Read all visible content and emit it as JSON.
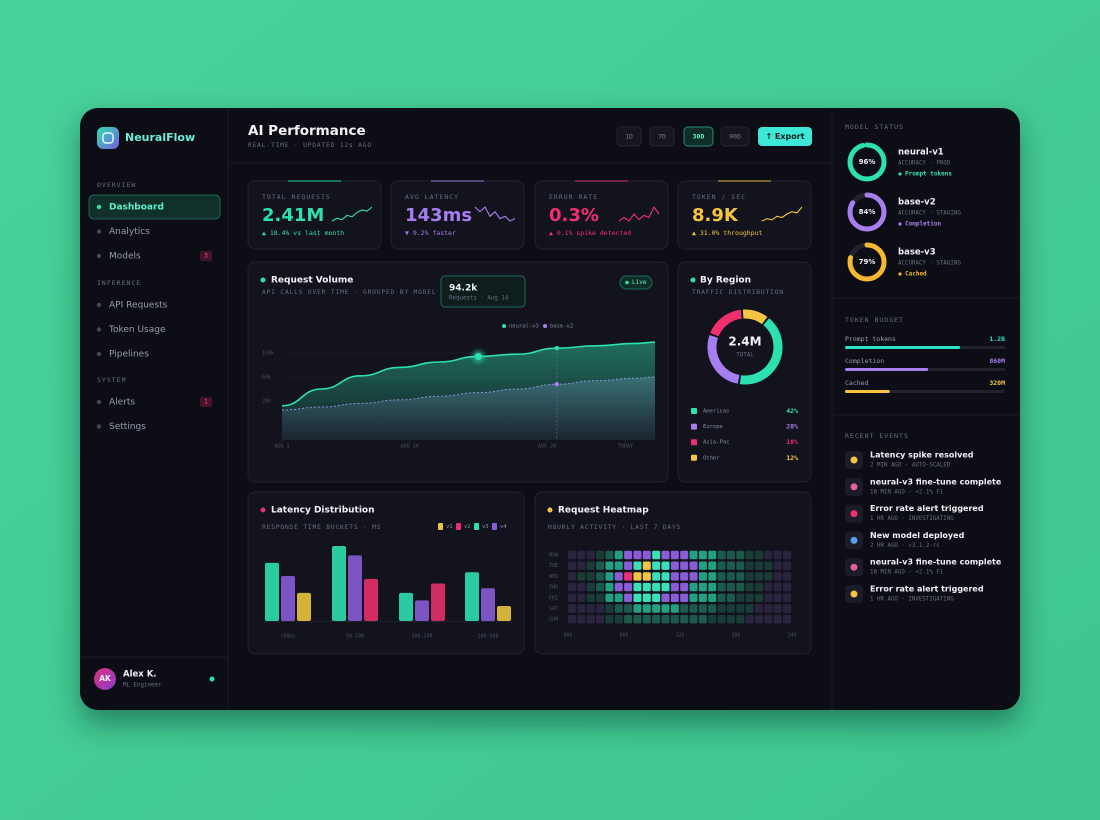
{
  "sidebar": {
    "brand": "NeuralFlow",
    "sections": [
      {
        "title": "OVERVIEW",
        "items": [
          {
            "label": "Dashboard",
            "active": true
          },
          {
            "label": "Analytics"
          },
          {
            "label": "Models",
            "badge": "3"
          }
        ]
      },
      {
        "title": "INFERENCE",
        "items": [
          {
            "label": "API Requests"
          },
          {
            "label": "Token Usage"
          },
          {
            "label": "Pipelines"
          }
        ]
      },
      {
        "title": "SYSTEM",
        "items": [
          {
            "label": "Alerts",
            "badge": "1"
          },
          {
            "label": "Settings"
          }
        ]
      }
    ],
    "user": {
      "initials": "AK",
      "name": "Alex K.",
      "role": "ML Engineer"
    }
  },
  "header": {
    "title": "AI Performance",
    "subtitle": "REAL-TIME · UPDATED 12s AGO",
    "ranges": [
      {
        "label": "1D"
      },
      {
        "label": "7D"
      },
      {
        "label": "30D",
        "active": true
      },
      {
        "label": "90D"
      }
    ],
    "export": "↑ Export"
  },
  "kpis": [
    {
      "label": "TOTAL REQUESTS",
      "value": "2.41M",
      "delta": "▲ 18.4% vs last month",
      "color": "#2de0b0",
      "spark": [
        3,
        4,
        3.5,
        5,
        4.5,
        6,
        7,
        6.5,
        8
      ]
    },
    {
      "label": "AVG LATENCY",
      "value": "143ms",
      "delta": "▼ 9.2% faster",
      "color": "#a77ef0",
      "spark": [
        7,
        6,
        7,
        5,
        6,
        4.5,
        5,
        4,
        4.5
      ]
    },
    {
      "label": "ERROR RATE",
      "value": "0.3%",
      "delta": "▲ 0.1% spike detected",
      "color": "#f0306e",
      "spark": [
        4,
        4.5,
        4,
        5,
        4.2,
        4.8,
        4.5,
        6,
        5
      ]
    },
    {
      "label": "TOKEN / SEC",
      "value": "8.9K",
      "delta": "▲ 31.0% throughput",
      "color": "#f5c542",
      "spark": [
        2,
        3,
        2.5,
        4,
        3.5,
        5,
        6,
        5.5,
        8
      ]
    }
  ],
  "request_volume": {
    "type": "area",
    "title": "Request Volume",
    "subtitle": "API CALLS OVER TIME · GROUPED BY MODEL",
    "badge": "Live",
    "tooltip": {
      "value": "94.2k",
      "label": "Requests · Aug 14"
    },
    "x": [
      1,
      5,
      9,
      13,
      17,
      21,
      25,
      29,
      33,
      37,
      39
    ],
    "xlim": [
      1,
      39
    ],
    "xticks": [
      {
        "value": 1,
        "label": "AUG 1"
      },
      {
        "value": 14,
        "label": "AUG 14"
      },
      {
        "value": 28,
        "label": "AUG 28"
      },
      {
        "value": 36,
        "label": "TODAY"
      }
    ],
    "ylim": [
      0,
      120000
    ],
    "yticks": [
      {
        "value": 100000,
        "label": "100k"
      },
      {
        "value": 60000,
        "label": "60k"
      },
      {
        "value": 20000,
        "label": "20k"
      }
    ],
    "series": [
      {
        "name": "neural-v3",
        "color": "#2de0b0",
        "values": [
          12000,
          40000,
          62000,
          76000,
          85000,
          94200,
          98000,
          108000,
          112000,
          116000,
          118000
        ]
      },
      {
        "name": "base-v2",
        "color": "#a77ef0",
        "values": [
          5000,
          10000,
          16000,
          22000,
          28000,
          34000,
          40000,
          48000,
          54000,
          58000,
          60000
        ]
      }
    ]
  },
  "latency": {
    "type": "bar",
    "title": "Latency Distribution",
    "subtitle": "RESPONSE TIME BUCKETS · MS",
    "categories": [
      "<50ms",
      "50-100",
      "100-200",
      "200-500"
    ],
    "ylim": [
      0,
      80
    ],
    "series": [
      {
        "name": "v1",
        "color": "#e8c53e",
        "values": [
          30,
          null,
          null,
          16
        ]
      },
      {
        "name": "v2",
        "color": "#e8306e",
        "values": [
          null,
          45,
          40,
          null
        ]
      },
      {
        "name": "v3",
        "color": "#2de0b0",
        "values": [
          62,
          80,
          30,
          52
        ]
      },
      {
        "name": "v4",
        "color": "#8a5cd6",
        "values": [
          48,
          70,
          22,
          35
        ]
      }
    ]
  },
  "heatmap": {
    "type": "heatmap",
    "title": "Request Heatmap",
    "subtitle": "HOURLY ACTIVITY · LAST 7 DAYS",
    "rows": [
      "MON",
      "TUE",
      "WED",
      "THU",
      "FRI",
      "SAT",
      "SUN"
    ],
    "xlim": [
      0,
      24
    ],
    "xticks": [
      {
        "value": 0,
        "label": "00h"
      },
      {
        "value": 6,
        "label": "06h"
      },
      {
        "value": 12,
        "label": "12h"
      },
      {
        "value": 18,
        "label": "18h"
      },
      {
        "value": 24,
        "label": "24h"
      }
    ],
    "values": [
      [
        18,
        20,
        22,
        28,
        45,
        58,
        66,
        70,
        74,
        78,
        72,
        70,
        68,
        62,
        58,
        50,
        42,
        38,
        36,
        30,
        26,
        22,
        20,
        18
      ],
      [
        20,
        22,
        26,
        34,
        52,
        62,
        72,
        80,
        86,
        84,
        78,
        74,
        70,
        66,
        60,
        54,
        46,
        40,
        34,
        30,
        26,
        24,
        20,
        18
      ],
      [
        22,
        24,
        28,
        36,
        56,
        66,
        97,
        90,
        88,
        80,
        76,
        72,
        70,
        64,
        58,
        52,
        44,
        40,
        36,
        32,
        28,
        24,
        22,
        20
      ],
      [
        20,
        22,
        26,
        34,
        50,
        64,
        74,
        80,
        84,
        82,
        76,
        72,
        68,
        62,
        56,
        50,
        44,
        38,
        34,
        30,
        26,
        22,
        20,
        18
      ],
      [
        18,
        20,
        24,
        30,
        48,
        60,
        70,
        78,
        80,
        76,
        72,
        68,
        64,
        60,
        54,
        48,
        42,
        36,
        32,
        28,
        24,
        20,
        18,
        16
      ],
      [
        14,
        16,
        18,
        22,
        30,
        38,
        44,
        48,
        50,
        52,
        50,
        48,
        46,
        42,
        40,
        36,
        32,
        28,
        26,
        24,
        20,
        18,
        16,
        14
      ],
      [
        12,
        14,
        16,
        20,
        26,
        32,
        38,
        42,
        44,
        46,
        44,
        42,
        40,
        38,
        36,
        32,
        28,
        26,
        24,
        22,
        18,
        16,
        14,
        12
      ]
    ]
  },
  "region": {
    "type": "pie",
    "title": "By Region",
    "subtitle": "TRAFFIC DISTRIBUTION",
    "center_value": "2.4M",
    "center_label": "TOTAL",
    "categories": [
      "Americas",
      "Europe",
      "Asia-Pac",
      "Other"
    ],
    "values": [
      42,
      28,
      18,
      12
    ],
    "value_labels": [
      "42%",
      "28%",
      "18%",
      "12%"
    ],
    "colors": [
      "#2de0b0",
      "#a77ef0",
      "#f0306e",
      "#f5c542"
    ]
  },
  "model_status": {
    "title": "MODEL STATUS",
    "models": [
      {
        "name": "neural-v1",
        "meta": "ACCURACY · PROD",
        "tag": "Prompt tokens",
        "value": 96,
        "label": "96%",
        "color": "#2de0b0"
      },
      {
        "name": "base-v2",
        "meta": "ACCURACY · STAGING",
        "tag": "Completion",
        "value": 84,
        "label": "84%",
        "color": "#a77ef0"
      },
      {
        "name": "base-v3",
        "meta": "ACCURACY · STAGING",
        "tag": "Cached",
        "value": 79,
        "label": "79%",
        "color": "#f5b82e"
      }
    ]
  },
  "token_budget": {
    "title": "TOKEN BUDGET",
    "items": [
      {
        "label": "Prompt tokens",
        "amount": "1.2B",
        "progress": 72,
        "color": "#2de0c8"
      },
      {
        "label": "Completion",
        "amount": "860M",
        "progress": 52,
        "color": "#a77ef0"
      },
      {
        "label": "Cached",
        "amount": "320M",
        "progress": 28,
        "color": "#f5c542"
      }
    ]
  },
  "events": {
    "title": "RECENT EVENTS",
    "items": [
      {
        "title": "Latency spike resolved",
        "meta": "2 MIN AGO · AUTO-SCALED",
        "color": "#f5c542"
      },
      {
        "title": "neural-v3 fine-tune complete",
        "meta": "18 MIN AGO · +2.1% F1",
        "color": "#e060a0"
      },
      {
        "title": "Error rate alert triggered",
        "meta": "1 HR AGO · INVESTIGATING",
        "color": "#f0306e"
      },
      {
        "title": "New model deployed",
        "meta": "2 HR AGO · v3.1.2-rc",
        "color": "#5aa0f0"
      },
      {
        "title": "neural-v3 fine-tune complete",
        "meta": "18 MIN AGO · +2.1% F1",
        "color": "#e060a0"
      },
      {
        "title": "Error rate alert triggered",
        "meta": "1 HR AGO · INVESTIGATING",
        "color": "#f5c542"
      }
    ]
  }
}
